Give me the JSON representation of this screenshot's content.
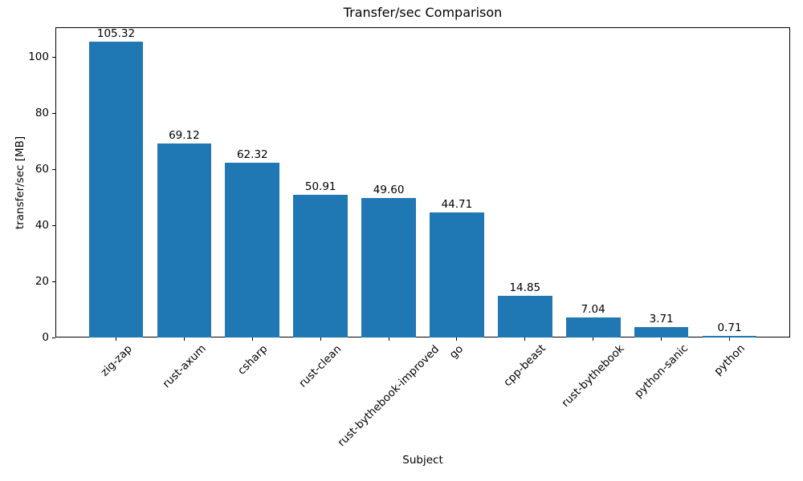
{
  "chart_data": {
    "type": "bar",
    "title": "Transfer/sec Comparison",
    "xlabel": "Subject",
    "ylabel": "transfer/sec [MB]",
    "categories": [
      "zig-zap",
      "rust-axum",
      "csharp",
      "rust-clean",
      "rust-bythebook-improved",
      "go",
      "cpp-beast",
      "rust-bythebook",
      "python-sanic",
      "python"
    ],
    "values": [
      105.32,
      69.12,
      62.32,
      50.91,
      49.6,
      44.71,
      14.85,
      7.04,
      3.71,
      0.71
    ],
    "value_labels": [
      "105.32",
      "69.12",
      "62.32",
      "50.91",
      "49.60",
      "44.71",
      "14.85",
      "7.04",
      "3.71",
      "0.71"
    ],
    "yticks": [
      "0",
      "20",
      "40",
      "60",
      "80",
      "100"
    ],
    "ytick_values": [
      0,
      20,
      40,
      60,
      80,
      100
    ],
    "ylim": [
      0,
      110.59
    ],
    "bar_color": "#1f77b4",
    "text_color": "#000000",
    "background_color": "#ffffff",
    "grid": false,
    "legend": null,
    "xtick_rotation_deg": 45
  }
}
